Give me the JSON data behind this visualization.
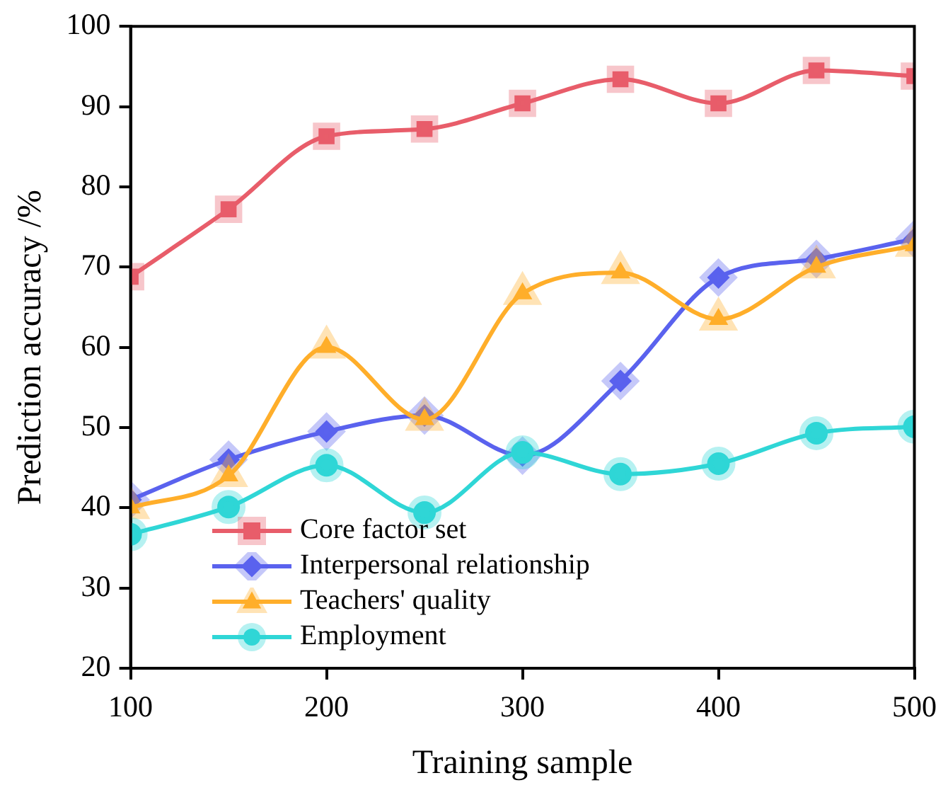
{
  "chart_data": {
    "type": "line",
    "xlabel": "Training sample",
    "ylabel": "Prediction accuracy /%",
    "x": [
      100,
      150,
      200,
      250,
      300,
      350,
      400,
      450,
      500
    ],
    "series": [
      {
        "name": "Core factor set",
        "color": "#e85d6a",
        "marker": "square",
        "values": [
          68.8,
          77.2,
          86.3,
          87.2,
          90.4,
          93.4,
          90.4,
          94.5,
          93.8
        ]
      },
      {
        "name": "Interpersonal relationship",
        "color": "#5a62ee",
        "marker": "diamond",
        "values": [
          41,
          46,
          49.5,
          51.5,
          46.5,
          55.8,
          68.7,
          71,
          73.5
        ]
      },
      {
        "name": "Teachers' quality",
        "color": "#ffae2a",
        "marker": "triangle",
        "values": [
          40,
          44,
          60,
          51,
          66.7,
          69.3,
          63.5,
          70,
          72.7
        ]
      },
      {
        "name": "Employment",
        "color": "#2fd6d6",
        "marker": "circle",
        "values": [
          36.7,
          40.1,
          45.3,
          39.4,
          46.9,
          44.2,
          45.5,
          49.3,
          50.1
        ]
      }
    ],
    "xlim": [
      100,
      500
    ],
    "xticks": [
      100,
      200,
      300,
      400,
      500
    ],
    "ylim": [
      20,
      100
    ],
    "yticks": [
      20,
      30,
      40,
      50,
      60,
      70,
      80,
      90,
      100
    ],
    "grid": false,
    "legend": "bottom left"
  }
}
